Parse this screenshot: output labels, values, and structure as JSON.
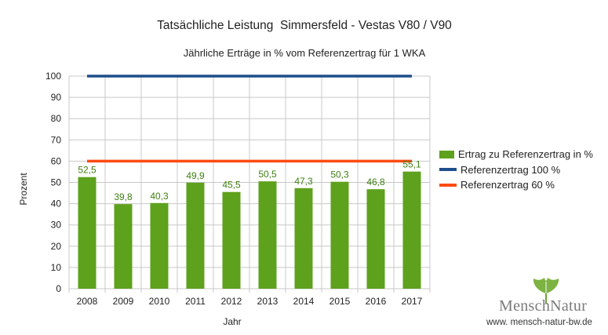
{
  "chart_data": {
    "type": "bar",
    "title": "Tatsächliche Leistung  Simmersfeld - Vestas V80 / V90",
    "subtitle": "Jährliche Erträge in % vom Referenzertrag für 1 WKA",
    "xlabel": "Jahr",
    "ylabel": "Prozent",
    "ylim": [
      0,
      100
    ],
    "yticks": [
      0,
      10,
      20,
      30,
      40,
      50,
      60,
      70,
      80,
      90,
      100
    ],
    "grid": true,
    "legend_position": "right",
    "categories": [
      "2008",
      "2009",
      "2010",
      "2011",
      "2012",
      "2013",
      "2014",
      "2015",
      "2016",
      "2017"
    ],
    "series": [
      {
        "name": "Ertrag zu Referenzertrag in %",
        "kind": "bar",
        "color": "#5ea11d",
        "values": [
          52.5,
          39.8,
          40.3,
          49.9,
          45.5,
          50.5,
          47.3,
          50.3,
          46.8,
          55.1
        ],
        "labels": [
          "52,5",
          "39,8",
          "40,3",
          "49,9",
          "45,5",
          "50,5",
          "47,3",
          "50,3",
          "46,8",
          "55,1"
        ]
      },
      {
        "name": "Referenzertrag 100 %",
        "kind": "line",
        "color": "#1f4e8c",
        "values": [
          100,
          100,
          100,
          100,
          100,
          100,
          100,
          100,
          100,
          100
        ]
      },
      {
        "name": "Referenzertrag 60 %",
        "kind": "line",
        "color": "#ff4a12",
        "values": [
          60,
          60,
          60,
          60,
          60,
          60,
          60,
          60,
          60,
          60
        ]
      }
    ]
  },
  "logo": {
    "name": "MenschNatur",
    "url": "www. mensch-natur-bw.de"
  }
}
